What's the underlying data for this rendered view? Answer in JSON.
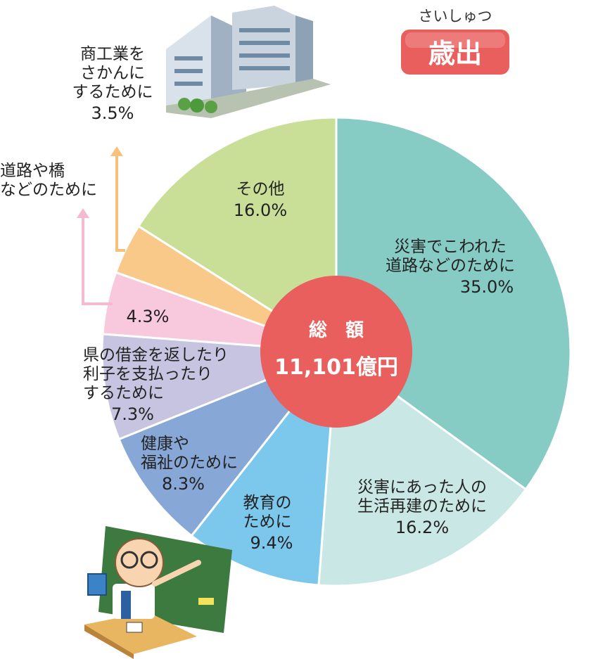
{
  "chart_data": {
    "type": "pie",
    "title": "歳出",
    "title_ruby": "さいしゅつ",
    "center_label": "総　額",
    "total": "11,101億円",
    "slices": [
      {
        "lines": [
          "災害でこわれた",
          "道路などのために"
        ],
        "pct_label": "35.0%",
        "value": 35.0,
        "color": "#86cbc4"
      },
      {
        "lines": [
          "災害にあった人の",
          "生活再建のために"
        ],
        "pct_label": "16.2%",
        "value": 16.2,
        "color": "#c9e7e4"
      },
      {
        "lines": [
          "教育の",
          "ために"
        ],
        "pct_label": "9.4%",
        "value": 9.4,
        "color": "#7cc8ec"
      },
      {
        "lines": [
          "健康や",
          "福祉のために"
        ],
        "pct_label": "8.3%",
        "value": 8.3,
        "color": "#87a7d6"
      },
      {
        "lines": [
          "県の借金を返したり",
          "利子を支払ったり",
          "するために"
        ],
        "pct_label": "7.3%",
        "value": 7.3,
        "color": "#c6c4e0"
      },
      {
        "lines": [
          "道路や橋",
          "などのために"
        ],
        "pct_label": "4.3%",
        "value": 4.3,
        "color": "#f8c8dc"
      },
      {
        "lines": [
          "商工業を",
          "さかんに",
          "するために"
        ],
        "pct_label": "3.5%",
        "value": 3.5,
        "color": "#f9c98a"
      },
      {
        "lines": [
          "その他"
        ],
        "pct_label": "16.0%",
        "value": 16.0,
        "color": "#c9df98"
      }
    ],
    "colors": {
      "center": "#e85f5d",
      "badge": "#e85f5d",
      "arrow_pink": "#f5b9d2",
      "arrow_orange": "#f6c17c"
    }
  }
}
